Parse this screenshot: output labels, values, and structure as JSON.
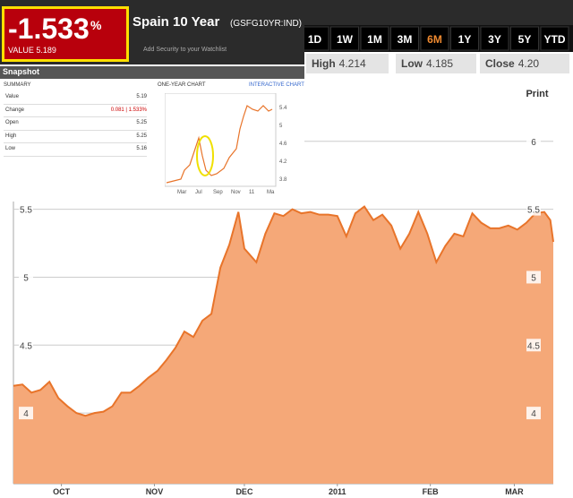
{
  "quote": {
    "change_pct": "-1.533",
    "pct_sign": "%",
    "value_label": "VALUE 5.189",
    "name": "Spain 10 Year",
    "ticker": "(GSFG10YR:IND)",
    "watchlist": "Add Security to your Watchlist"
  },
  "snapshot": {
    "title": "Snapshot",
    "summary_title": "SUMMARY",
    "rows": [
      [
        "Value",
        "5.19"
      ],
      [
        "Change",
        "0.081 | 1.533%"
      ],
      [
        "Open",
        "5.25"
      ],
      [
        "High",
        "5.25"
      ],
      [
        "Low",
        "5.16"
      ]
    ],
    "mini_chart": {
      "title": "ONE-YEAR CHART",
      "link": "INTERACTIVE CHART",
      "yticks": [
        "5.4",
        "5",
        "4.6",
        "4.2",
        "3.8"
      ],
      "xticks": [
        "Mar",
        "Jul",
        "Sep",
        "Nov",
        "11",
        "Ma"
      ]
    }
  },
  "toolbar": {
    "ranges": [
      "1D",
      "1W",
      "1M",
      "3M",
      "6M",
      "1Y",
      "3Y",
      "5Y",
      "YTD"
    ],
    "active": "6M",
    "high_label": "High",
    "high": "4.214",
    "low_label": "Low",
    "low": "4.185",
    "close_label": "Close",
    "close": "4.20",
    "print": "Print"
  },
  "chart_data": {
    "type": "area",
    "color": "#f5a878",
    "line_color": "#e8742a",
    "x": [
      0,
      3,
      6,
      9,
      12,
      15,
      18,
      21,
      24,
      27,
      30,
      33,
      36,
      39,
      42,
      45,
      48,
      51,
      54,
      57,
      60,
      63,
      66,
      69,
      72,
      75,
      77,
      81,
      84,
      87,
      90,
      93,
      96,
      99,
      102,
      105,
      108,
      111,
      114,
      117,
      120,
      123,
      126,
      129,
      132,
      135,
      138,
      141,
      144,
      147,
      150,
      153,
      156,
      159,
      162,
      165,
      168,
      171,
      174,
      177,
      179,
      180
    ],
    "values": [
      4.2,
      4.21,
      4.15,
      4.17,
      4.23,
      4.11,
      4.05,
      4.0,
      3.98,
      4.0,
      4.01,
      4.05,
      4.15,
      4.15,
      4.2,
      4.26,
      4.31,
      4.39,
      4.48,
      4.6,
      4.56,
      4.68,
      4.73,
      5.07,
      5.24,
      5.48,
      5.21,
      5.11,
      5.32,
      5.47,
      5.45,
      5.5,
      5.47,
      5.48,
      5.46,
      5.46,
      5.45,
      5.3,
      5.47,
      5.52,
      5.42,
      5.46,
      5.38,
      5.21,
      5.32,
      5.48,
      5.32,
      5.11,
      5.23,
      5.32,
      5.3,
      5.47,
      5.4,
      5.36,
      5.36,
      5.38,
      5.35,
      5.4,
      5.47,
      5.48,
      5.42,
      5.26
    ],
    "xlim": [
      0,
      180
    ],
    "ylim": [
      3.48,
      6.46
    ],
    "xticks": [
      {
        "value": 16,
        "label": "OCT"
      },
      {
        "value": 47,
        "label": "NOV"
      },
      {
        "value": 77,
        "label": "DEC"
      },
      {
        "value": 108,
        "label": "2011"
      },
      {
        "value": 139,
        "label": "FEB"
      },
      {
        "value": 167,
        "label": "MAR"
      }
    ],
    "yticks": [
      4,
      4.5,
      5,
      5.5,
      6
    ],
    "grid": true
  }
}
